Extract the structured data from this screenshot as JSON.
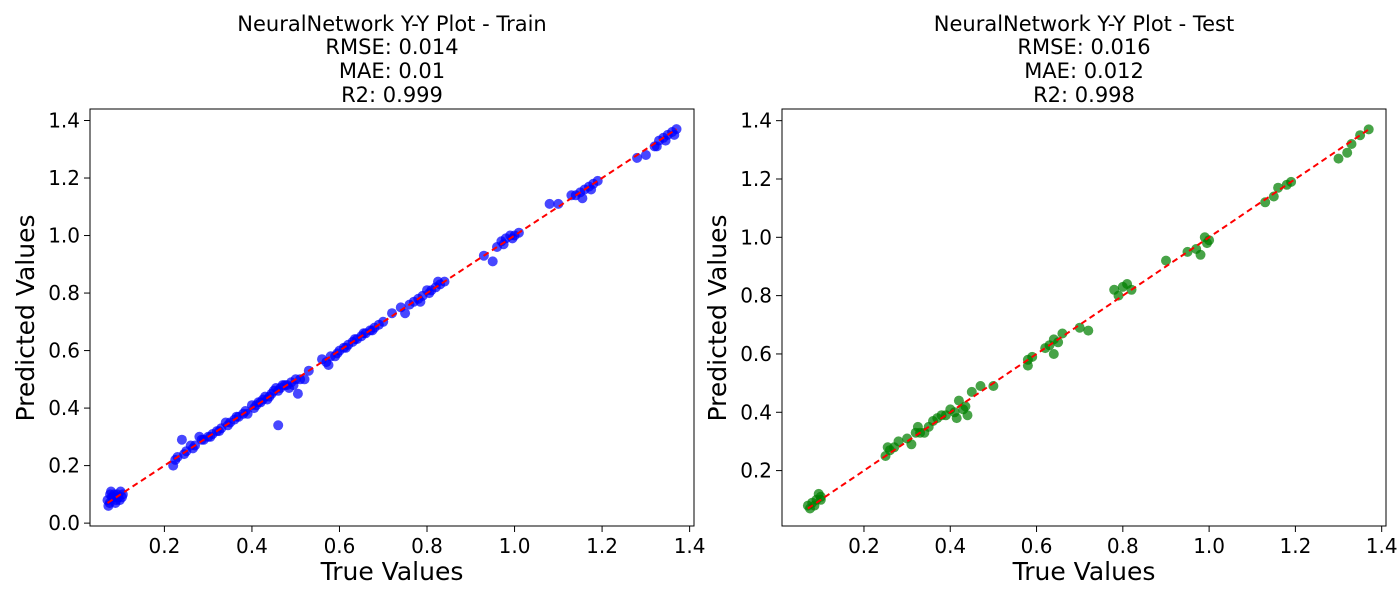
{
  "chart_data": [
    {
      "type": "scatter",
      "title_lines": [
        "NeuralNetwork Y-Y Plot - Train",
        "RMSE: 0.014",
        "MAE: 0.01",
        "R2: 0.999"
      ],
      "xlabel": "True Values",
      "ylabel": "Predicted Values",
      "xlim": [
        0.03,
        1.41
      ],
      "ylim": [
        -0.01,
        1.44
      ],
      "xticks": [
        0.2,
        0.4,
        0.6,
        0.8,
        1.0,
        1.2,
        1.4
      ],
      "xtick_labels": [
        "0.2",
        "0.4",
        "0.6",
        "0.8",
        "1.0",
        "1.2",
        "1.4"
      ],
      "yticks": [
        0.0,
        0.2,
        0.4,
        0.6,
        0.8,
        1.0,
        1.2,
        1.4
      ],
      "ytick_labels": [
        "0.0",
        "0.2",
        "0.4",
        "0.6",
        "0.8",
        "1.0",
        "1.2",
        "1.4"
      ],
      "point_color": "#0000ff",
      "reference_line": {
        "x": [
          0.07,
          1.37
        ],
        "y": [
          0.07,
          1.37
        ],
        "color": "#ff0000",
        "style": "dashed"
      },
      "x": [
        0.07,
        0.075,
        0.08,
        0.085,
        0.09,
        0.095,
        0.1,
        0.105,
        0.072,
        0.088,
        0.098,
        0.078,
        0.092,
        0.083,
        0.103,
        0.076,
        0.22,
        0.23,
        0.24,
        0.25,
        0.26,
        0.27,
        0.28,
        0.29,
        0.3,
        0.31,
        0.32,
        0.33,
        0.34,
        0.35,
        0.36,
        0.37,
        0.38,
        0.39,
        0.4,
        0.41,
        0.42,
        0.43,
        0.44,
        0.45,
        0.46,
        0.47,
        0.48,
        0.49,
        0.5,
        0.51,
        0.52,
        0.53,
        0.225,
        0.245,
        0.265,
        0.285,
        0.305,
        0.325,
        0.345,
        0.365,
        0.385,
        0.405,
        0.415,
        0.425,
        0.435,
        0.445,
        0.455,
        0.465,
        0.475,
        0.485,
        0.495,
        0.46,
        0.505,
        0.56,
        0.57,
        0.58,
        0.59,
        0.6,
        0.61,
        0.62,
        0.63,
        0.64,
        0.65,
        0.66,
        0.67,
        0.68,
        0.69,
        0.7,
        0.72,
        0.74,
        0.75,
        0.76,
        0.77,
        0.78,
        0.79,
        0.8,
        0.81,
        0.82,
        0.83,
        0.84,
        0.575,
        0.595,
        0.615,
        0.635,
        0.655,
        0.675,
        0.785,
        0.805,
        0.825,
        0.93,
        0.95,
        0.96,
        0.97,
        0.98,
        0.99,
        1.0,
        1.01,
        0.975,
        0.995,
        1.08,
        1.1,
        1.13,
        1.14,
        1.15,
        1.16,
        1.17,
        1.18,
        1.19,
        1.155,
        1.175,
        1.28,
        1.3,
        1.32,
        1.33,
        1.34,
        1.35,
        1.36,
        1.37,
        1.325,
        1.345,
        1.365
      ],
      "y": [
        0.08,
        0.07,
        0.09,
        0.1,
        0.08,
        0.09,
        0.11,
        0.1,
        0.06,
        0.07,
        0.08,
        0.11,
        0.1,
        0.09,
        0.09,
        0.1,
        0.2,
        0.23,
        0.29,
        0.25,
        0.27,
        0.27,
        0.3,
        0.29,
        0.3,
        0.31,
        0.32,
        0.33,
        0.35,
        0.35,
        0.36,
        0.37,
        0.38,
        0.38,
        0.41,
        0.41,
        0.42,
        0.44,
        0.44,
        0.46,
        0.46,
        0.48,
        0.48,
        0.49,
        0.5,
        0.5,
        0.5,
        0.53,
        0.22,
        0.24,
        0.26,
        0.29,
        0.3,
        0.32,
        0.34,
        0.37,
        0.39,
        0.4,
        0.42,
        0.43,
        0.43,
        0.45,
        0.47,
        0.47,
        0.48,
        0.47,
        0.48,
        0.34,
        0.45,
        0.57,
        0.56,
        0.58,
        0.58,
        0.6,
        0.61,
        0.62,
        0.63,
        0.64,
        0.65,
        0.66,
        0.67,
        0.68,
        0.69,
        0.7,
        0.73,
        0.75,
        0.73,
        0.76,
        0.77,
        0.78,
        0.79,
        0.81,
        0.81,
        0.82,
        0.83,
        0.84,
        0.55,
        0.59,
        0.61,
        0.64,
        0.66,
        0.67,
        0.77,
        0.8,
        0.84,
        0.93,
        0.91,
        0.96,
        0.98,
        0.99,
        1.0,
        1.0,
        1.01,
        0.97,
        0.99,
        1.11,
        1.11,
        1.14,
        1.14,
        1.15,
        1.16,
        1.17,
        1.18,
        1.19,
        1.13,
        1.16,
        1.27,
        1.28,
        1.31,
        1.33,
        1.34,
        1.35,
        1.36,
        1.37,
        1.31,
        1.33,
        1.35
      ]
    },
    {
      "type": "scatter",
      "title_lines": [
        "NeuralNetwork Y-Y Plot - Test",
        "RMSE: 0.016",
        "MAE: 0.012",
        "R2: 0.998"
      ],
      "xlabel": "True Values",
      "ylabel": "Predicted Values",
      "xlim": [
        0.01,
        1.41
      ],
      "ylim": [
        0.01,
        1.44
      ],
      "xticks": [
        0.2,
        0.4,
        0.6,
        0.8,
        1.0,
        1.2,
        1.4
      ],
      "xtick_labels": [
        "0.2",
        "0.4",
        "0.6",
        "0.8",
        "1.0",
        "1.2",
        "1.4"
      ],
      "yticks": [
        0.2,
        0.4,
        0.6,
        0.8,
        1.0,
        1.2,
        1.4
      ],
      "ytick_labels": [
        "0.2",
        "0.4",
        "0.6",
        "0.8",
        "1.0",
        "1.2",
        "1.4"
      ],
      "point_color": "#008000",
      "reference_line": {
        "x": [
          0.07,
          1.37
        ],
        "y": [
          0.07,
          1.37
        ],
        "color": "#ff0000",
        "style": "dashed"
      },
      "x": [
        0.07,
        0.08,
        0.09,
        0.095,
        0.1,
        0.085,
        0.075,
        0.1,
        0.25,
        0.26,
        0.27,
        0.28,
        0.3,
        0.31,
        0.32,
        0.33,
        0.34,
        0.35,
        0.36,
        0.37,
        0.38,
        0.39,
        0.4,
        0.41,
        0.42,
        0.43,
        0.44,
        0.45,
        0.47,
        0.5,
        0.255,
        0.325,
        0.415,
        0.435,
        0.58,
        0.59,
        0.62,
        0.63,
        0.64,
        0.65,
        0.66,
        0.7,
        0.72,
        0.58,
        0.64,
        0.78,
        0.8,
        0.81,
        0.82,
        0.79,
        0.9,
        0.95,
        0.97,
        0.98,
        0.99,
        1.0,
        0.995,
        1.13,
        1.15,
        1.16,
        1.18,
        1.19,
        1.3,
        1.32,
        1.33,
        1.35,
        1.37
      ],
      "y": [
        0.08,
        0.09,
        0.1,
        0.12,
        0.1,
        0.08,
        0.07,
        0.11,
        0.25,
        0.27,
        0.28,
        0.3,
        0.31,
        0.29,
        0.33,
        0.33,
        0.33,
        0.35,
        0.37,
        0.38,
        0.39,
        0.39,
        0.41,
        0.4,
        0.44,
        0.41,
        0.39,
        0.47,
        0.49,
        0.49,
        0.28,
        0.35,
        0.38,
        0.42,
        0.58,
        0.59,
        0.62,
        0.63,
        0.65,
        0.64,
        0.67,
        0.69,
        0.68,
        0.56,
        0.6,
        0.82,
        0.83,
        0.84,
        0.82,
        0.8,
        0.92,
        0.95,
        0.96,
        0.94,
        1.0,
        0.99,
        0.98,
        1.12,
        1.14,
        1.17,
        1.18,
        1.19,
        1.27,
        1.29,
        1.32,
        1.35,
        1.37
      ]
    }
  ]
}
